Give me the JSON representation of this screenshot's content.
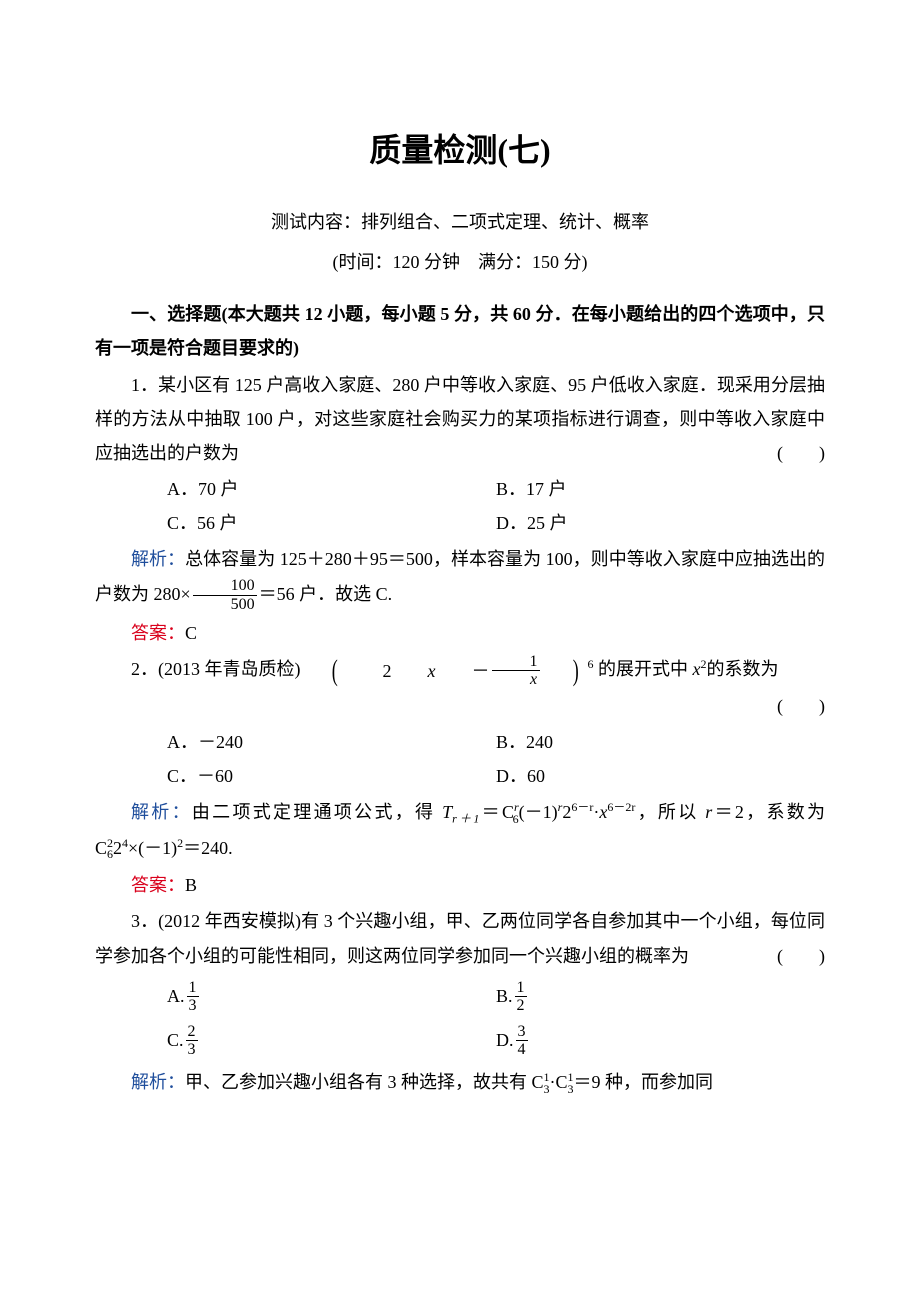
{
  "colors": {
    "text": "#000000",
    "red": "#d9001b",
    "blue": "#1f4e9c",
    "background": "#ffffff"
  },
  "typography": {
    "body_fontsize": 18,
    "title_fontsize": 32,
    "font_family": "SimSun"
  },
  "title": "质量检测(七)",
  "subtitle": "测试内容：排列组合、二项式定理、统计、概率",
  "meta": "(时间：120 分钟　满分：150 分)",
  "section1_header": "一、选择题(本大题共 12 小题，每小题 5 分，共 60 分．在每小题给出的四个选项中，只有一项是符合题目要求的)",
  "q1": {
    "text": "1．某小区有 125 户高收入家庭、280 户中等收入家庭、95 户低收入家庭．现采用分层抽样的方法从中抽取 100 户，对这些家庭社会购买力的某项指标进行调查，则中等收入家庭中应抽选出的户数为",
    "blank": "(　　)",
    "optA": "A．70 户",
    "optB": "B．17 户",
    "optC": "C．56 户",
    "optD": "D．25 户",
    "analysis_label": "解析：",
    "analysis_pre": "总体容量为 125＋280＋95＝500，样本容量为 100，则中等收入家庭中应抽选出的户数为 280×",
    "frac_num": "100",
    "frac_den": "500",
    "analysis_post": "＝56 户．故选 C.",
    "answer_label": "答案：",
    "answer": "C"
  },
  "q2": {
    "prefix": "2．(2013 年青岛质检)",
    "expr_pre": "2",
    "expr_var1": "x",
    "expr_minus": "－",
    "frac_num": "1",
    "frac_den_var": "x",
    "power": "6",
    "suffix_pre": " 的展开式中 ",
    "var2": "x",
    "sup2": "2",
    "suffix_post": "的系数为",
    "blank": "(　　)",
    "optA": "A．－240",
    "optB": "B．240",
    "optC": "C．－60",
    "optD": "D．60",
    "analysis_label": "解析：",
    "analysis_pre": "由二项式定理通项公式，得 ",
    "T_var": "T",
    "T_sub": "r＋1",
    "eq": "＝C",
    "c_sup1_top": "r",
    "c_sub1_bot": "6",
    "neg1": "(－1)",
    "r_sup": "r",
    "two": "2",
    "two_sup": "6－r",
    "dot": "·",
    "x_var": "x",
    "x_sup": "6－2r",
    "comma": "，所以 ",
    "r_var": "r",
    "r_eq": "＝2，系数为 C",
    "c2_top": "2",
    "c2_bot": "6",
    "mid": "2",
    "mid_sup": "4",
    "tail": "×(－1)",
    "tail_sup": "2",
    "end": "＝240.",
    "answer_label": "答案：",
    "answer": "B"
  },
  "q3": {
    "text": "3．(2012 年西安模拟)有 3 个兴趣小组，甲、乙两位同学各自参加其中一个小组，每位同学参加各个小组的可能性相同，则这两位同学参加同一个兴趣小组的概率为",
    "blank": "(　　)",
    "optA_label": "A.",
    "optA_num": "1",
    "optA_den": "3",
    "optB_label": "B.",
    "optB_num": "1",
    "optB_den": "2",
    "optC_label": "C.",
    "optC_num": "2",
    "optC_den": "3",
    "optD_label": "D.",
    "optD_num": "3",
    "optD_den": "4",
    "analysis_label": "解析：",
    "analysis_pre": "甲、乙参加兴趣小组各有 3 种选择，故共有 C",
    "c1_top": "1",
    "c1_bot": "3",
    "dot1": "·C",
    "c2_top": "1",
    "c2_bot": "3",
    "mid": "＝9 种，而参加同"
  }
}
